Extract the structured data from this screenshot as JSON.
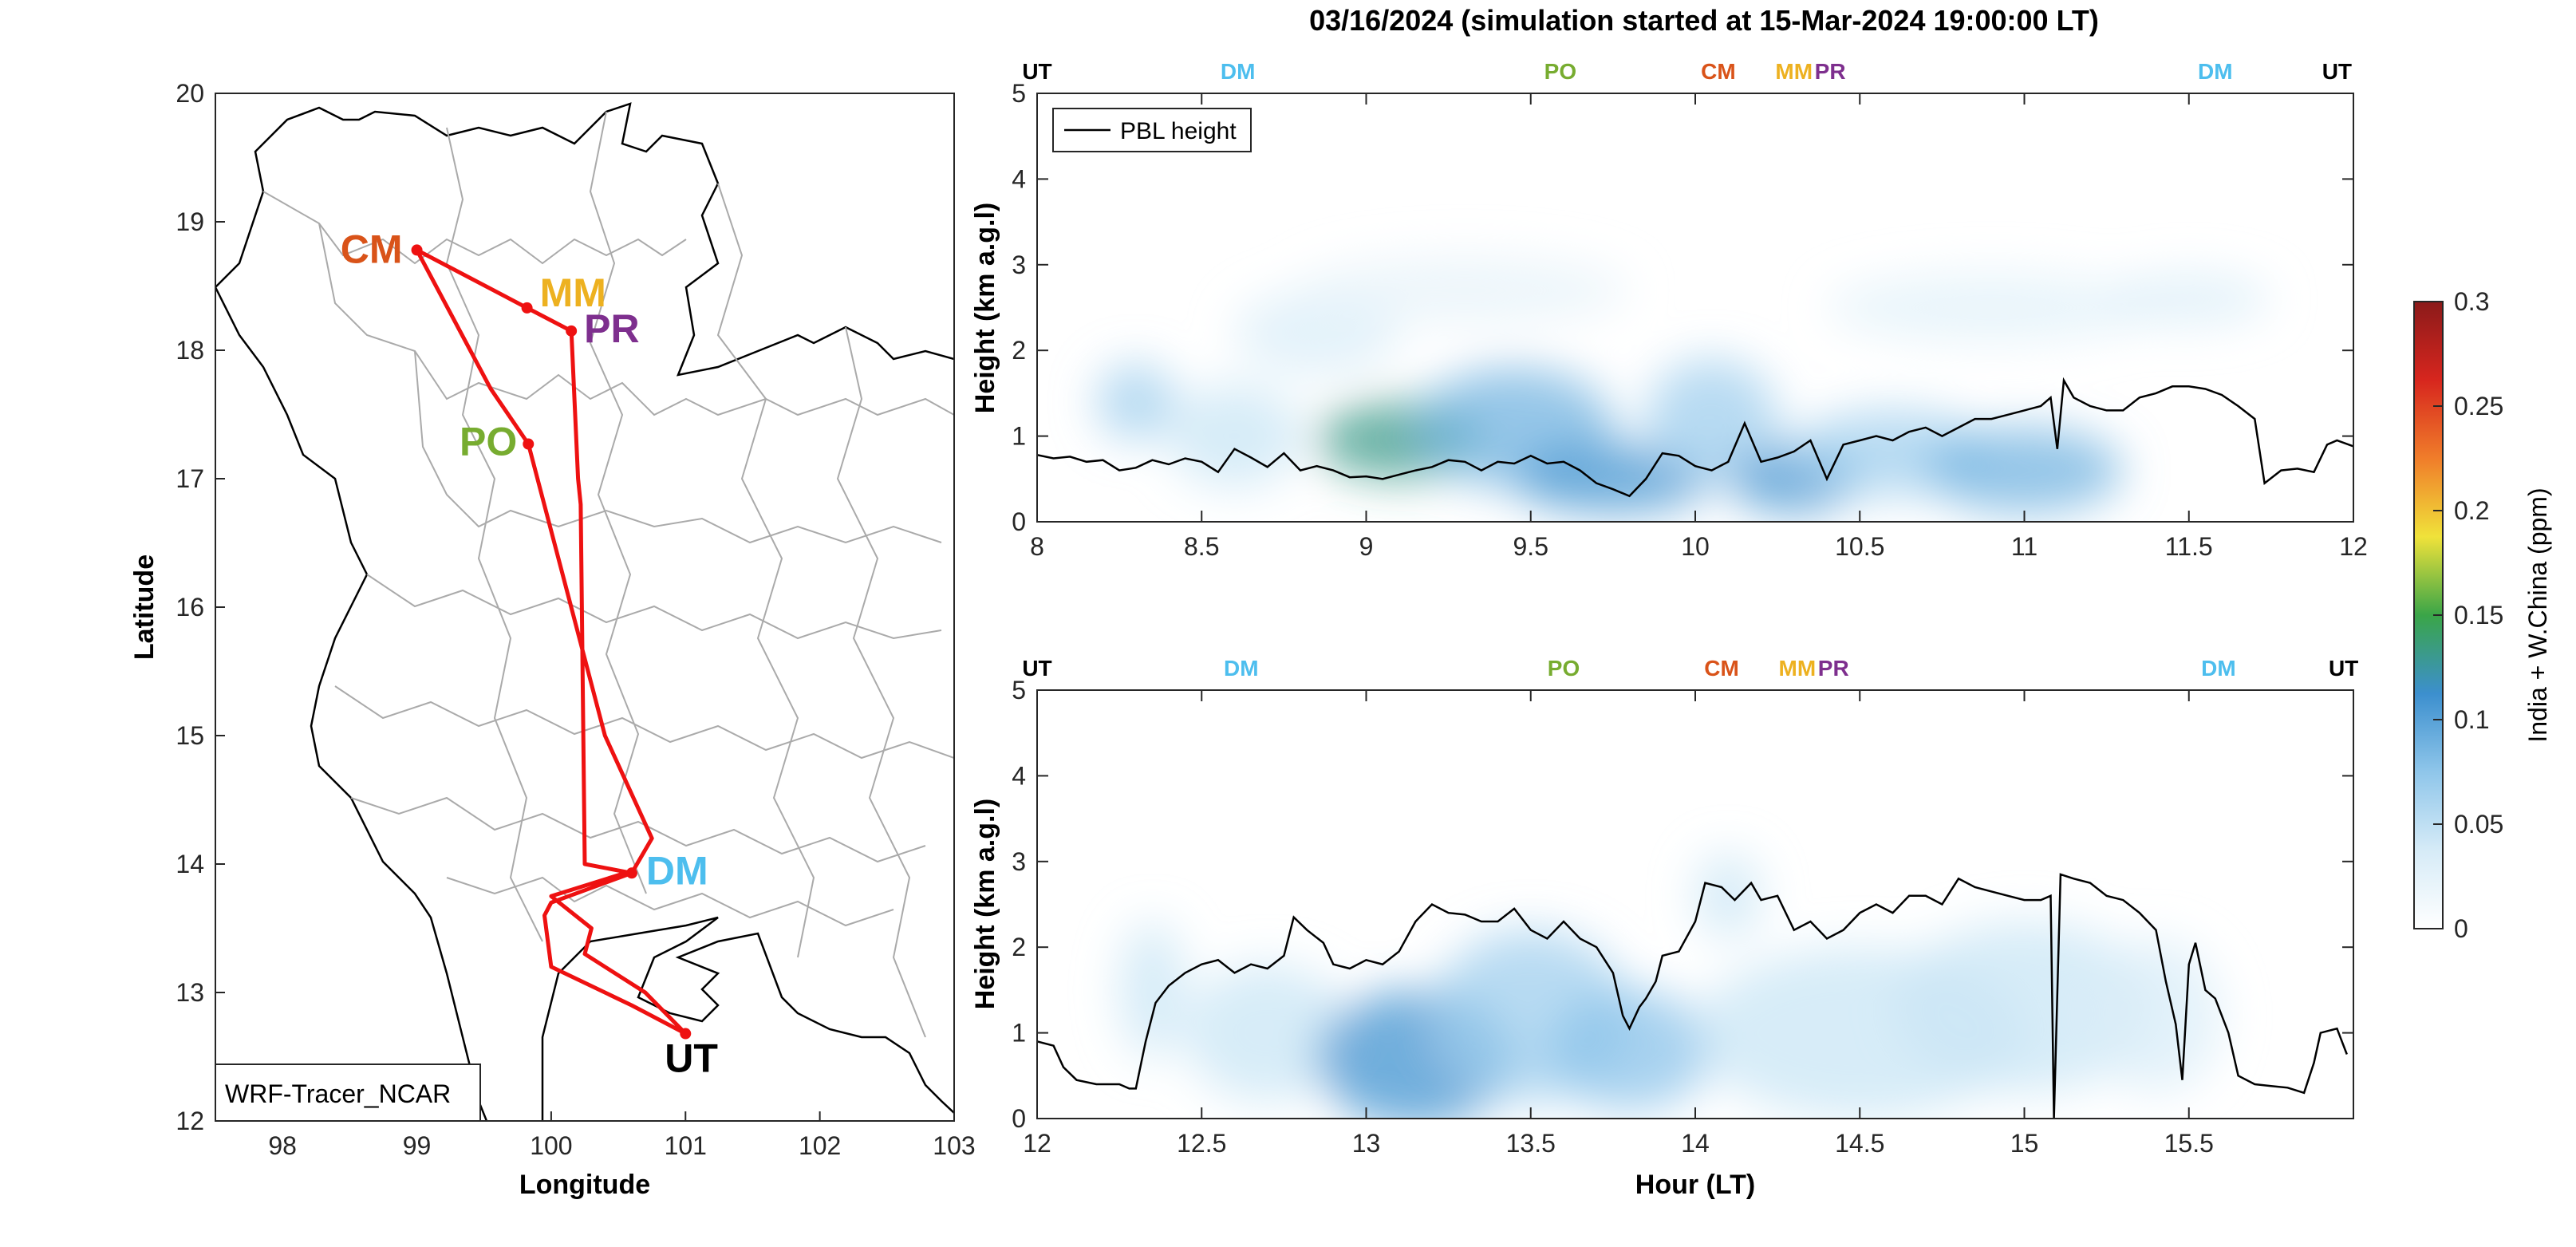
{
  "figure_title": "03/16/2024 (simulation started at 15-Mar-2024 19:00:00 LT)",
  "colors": {
    "UT": "#000000",
    "DM": "#4DBEEE",
    "PO": "#77AC30",
    "CM": "#D95319",
    "MM": "#EDB120",
    "PR": "#7E2F8E",
    "route": "#EE1111",
    "pbl": "#000000",
    "boundary": "#AAAAAA"
  },
  "colormap": [
    "#ffffff",
    "#d6ebf7",
    "#8fc6ea",
    "#3c8fce",
    "#3aa548",
    "#f0e23a",
    "#f07d2a",
    "#d7261e",
    "#8b1a1a"
  ],
  "chart_data": [
    {
      "type": "map",
      "xlabel": "Longitude",
      "ylabel": "Latitude",
      "xlim": [
        97.5,
        103
      ],
      "ylim": [
        12,
        20
      ],
      "xticks": [
        "98",
        "99",
        "100",
        "101",
        "102",
        "103"
      ],
      "yticks": [
        "12",
        "13",
        "14",
        "15",
        "16",
        "17",
        "18",
        "19",
        "20"
      ],
      "legend_label": "WRF-Tracer_NCAR",
      "stations": [
        {
          "code": "CM",
          "lon": 99.0,
          "lat": 18.78
        },
        {
          "code": "MM",
          "lon": 99.82,
          "lat": 18.33
        },
        {
          "code": "PR",
          "lon": 100.15,
          "lat": 18.15
        },
        {
          "code": "PO",
          "lon": 99.83,
          "lat": 17.27
        },
        {
          "code": "DM",
          "lon": 100.6,
          "lat": 13.93
        },
        {
          "code": "UT",
          "lon": 101.0,
          "lat": 12.68
        }
      ],
      "route": [
        [
          101.0,
          12.68
        ],
        [
          100.7,
          13.0
        ],
        [
          100.25,
          13.3
        ],
        [
          100.3,
          13.5
        ],
        [
          100.0,
          13.75
        ],
        [
          100.55,
          13.93
        ],
        [
          100.6,
          13.93
        ],
        [
          100.75,
          14.2
        ],
        [
          100.4,
          15.0
        ],
        [
          99.83,
          17.27
        ],
        [
          99.55,
          17.7
        ],
        [
          99.0,
          18.78
        ],
        [
          99.82,
          18.33
        ],
        [
          100.15,
          18.15
        ],
        [
          100.2,
          17.0
        ],
        [
          100.22,
          16.8
        ],
        [
          100.25,
          14.0
        ],
        [
          100.6,
          13.93
        ],
        [
          100.0,
          13.7
        ],
        [
          99.95,
          13.6
        ],
        [
          100.0,
          13.2
        ],
        [
          100.6,
          12.9
        ],
        [
          101.0,
          12.68
        ]
      ]
    },
    {
      "type": "heatmap",
      "panel": "top",
      "xlim": [
        8,
        12
      ],
      "ylim": [
        0,
        5
      ],
      "xticks": [
        "8",
        "8.5",
        "9",
        "9.5",
        "10",
        "10.5",
        "11",
        "11.5",
        "12"
      ],
      "yticks": [
        "0",
        "1",
        "2",
        "3",
        "4",
        "5"
      ],
      "ylabel": "Height (km a.g.l)",
      "legend": "PBL height",
      "station_labels": [
        {
          "code": "UT",
          "x": 8.0
        },
        {
          "code": "DM",
          "x": 8.61
        },
        {
          "code": "PO",
          "x": 9.59
        },
        {
          "code": "CM",
          "x": 10.07
        },
        {
          "code": "MM",
          "x": 10.3
        },
        {
          "code": "PR",
          "x": 10.41
        },
        {
          "code": "DM",
          "x": 11.58
        },
        {
          "code": "UT",
          "x": 11.95
        }
      ],
      "pbl_height": [
        [
          8.0,
          0.78
        ],
        [
          8.05,
          0.74
        ],
        [
          8.1,
          0.76
        ],
        [
          8.15,
          0.7
        ],
        [
          8.2,
          0.72
        ],
        [
          8.25,
          0.6
        ],
        [
          8.3,
          0.63
        ],
        [
          8.35,
          0.72
        ],
        [
          8.4,
          0.67
        ],
        [
          8.45,
          0.74
        ],
        [
          8.5,
          0.7
        ],
        [
          8.55,
          0.58
        ],
        [
          8.6,
          0.85
        ],
        [
          8.65,
          0.75
        ],
        [
          8.7,
          0.64
        ],
        [
          8.75,
          0.8
        ],
        [
          8.8,
          0.6
        ],
        [
          8.85,
          0.65
        ],
        [
          8.9,
          0.6
        ],
        [
          8.95,
          0.52
        ],
        [
          9.0,
          0.53
        ],
        [
          9.05,
          0.5
        ],
        [
          9.1,
          0.55
        ],
        [
          9.15,
          0.6
        ],
        [
          9.2,
          0.64
        ],
        [
          9.25,
          0.72
        ],
        [
          9.3,
          0.7
        ],
        [
          9.35,
          0.6
        ],
        [
          9.4,
          0.7
        ],
        [
          9.45,
          0.68
        ],
        [
          9.5,
          0.77
        ],
        [
          9.55,
          0.68
        ],
        [
          9.6,
          0.7
        ],
        [
          9.65,
          0.6
        ],
        [
          9.7,
          0.45
        ],
        [
          9.75,
          0.38
        ],
        [
          9.8,
          0.3
        ],
        [
          9.85,
          0.5
        ],
        [
          9.9,
          0.8
        ],
        [
          9.95,
          0.77
        ],
        [
          10.0,
          0.65
        ],
        [
          10.05,
          0.6
        ],
        [
          10.1,
          0.7
        ],
        [
          10.15,
          1.15
        ],
        [
          10.2,
          0.7
        ],
        [
          10.25,
          0.75
        ],
        [
          10.3,
          0.82
        ],
        [
          10.35,
          0.95
        ],
        [
          10.4,
          0.5
        ],
        [
          10.45,
          0.9
        ],
        [
          10.5,
          0.95
        ],
        [
          10.55,
          1.0
        ],
        [
          10.6,
          0.95
        ],
        [
          10.65,
          1.05
        ],
        [
          10.7,
          1.1
        ],
        [
          10.75,
          1.0
        ],
        [
          10.8,
          1.1
        ],
        [
          10.85,
          1.2
        ],
        [
          10.9,
          1.2
        ],
        [
          10.95,
          1.25
        ],
        [
          11.0,
          1.3
        ],
        [
          11.05,
          1.35
        ],
        [
          11.08,
          1.45
        ],
        [
          11.1,
          0.85
        ],
        [
          11.12,
          1.65
        ],
        [
          11.15,
          1.45
        ],
        [
          11.2,
          1.35
        ],
        [
          11.25,
          1.3
        ],
        [
          11.3,
          1.3
        ],
        [
          11.35,
          1.45
        ],
        [
          11.4,
          1.5
        ],
        [
          11.45,
          1.58
        ],
        [
          11.5,
          1.58
        ],
        [
          11.55,
          1.55
        ],
        [
          11.6,
          1.48
        ],
        [
          11.65,
          1.35
        ],
        [
          11.7,
          1.2
        ],
        [
          11.73,
          0.45
        ],
        [
          11.78,
          0.6
        ],
        [
          11.83,
          0.62
        ],
        [
          11.88,
          0.58
        ],
        [
          11.92,
          0.9
        ],
        [
          11.95,
          0.95
        ],
        [
          12.0,
          0.88
        ]
      ],
      "tracer_plumes": [
        {
          "x": 8.3,
          "y": 1.4,
          "rx": 0.12,
          "ry": 0.45,
          "value": 0.03
        },
        {
          "x": 8.6,
          "y": 1.0,
          "rx": 0.2,
          "ry": 0.6,
          "value": 0.02
        },
        {
          "x": 8.85,
          "y": 2.2,
          "rx": 0.25,
          "ry": 0.5,
          "value": 0.015
        },
        {
          "x": 9.1,
          "y": 0.95,
          "rx": 0.25,
          "ry": 0.45,
          "value": 0.06
        },
        {
          "x": 9.45,
          "y": 1.1,
          "rx": 0.3,
          "ry": 0.7,
          "value": 0.04
        },
        {
          "x": 9.75,
          "y": 0.5,
          "rx": 0.3,
          "ry": 0.4,
          "value": 0.05
        },
        {
          "x": 10.05,
          "y": 1.2,
          "rx": 0.2,
          "ry": 0.7,
          "value": 0.03
        },
        {
          "x": 10.3,
          "y": 0.5,
          "rx": 0.2,
          "ry": 0.4,
          "value": 0.05
        },
        {
          "x": 10.6,
          "y": 0.8,
          "rx": 0.3,
          "ry": 0.5,
          "value": 0.03
        },
        {
          "x": 11.0,
          "y": 0.6,
          "rx": 0.3,
          "ry": 0.5,
          "value": 0.04
        },
        {
          "x": 10.9,
          "y": 2.5,
          "rx": 0.5,
          "ry": 0.4,
          "value": 0.012
        },
        {
          "x": 11.5,
          "y": 2.6,
          "rx": 0.25,
          "ry": 0.3,
          "value": 0.015
        },
        {
          "x": 9.3,
          "y": 2.7,
          "rx": 0.5,
          "ry": 0.4,
          "value": 0.01
        }
      ]
    },
    {
      "type": "heatmap",
      "panel": "bottom",
      "xlim": [
        12,
        16
      ],
      "ylim": [
        0,
        5
      ],
      "xticks": [
        "12",
        "12.5",
        "13",
        "13.5",
        "14",
        "14.5",
        "15",
        "15.5"
      ],
      "yticks": [
        "0",
        "1",
        "2",
        "3",
        "4",
        "5"
      ],
      "xlabel": "Hour (LT)",
      "ylabel": "Height (km a.g.l)",
      "station_labels": [
        {
          "code": "UT",
          "x": 12.0
        },
        {
          "code": "DM",
          "x": 12.62
        },
        {
          "code": "PO",
          "x": 13.6
        },
        {
          "code": "CM",
          "x": 14.08
        },
        {
          "code": "MM",
          "x": 14.31
        },
        {
          "code": "PR",
          "x": 14.42
        },
        {
          "code": "DM",
          "x": 15.59
        },
        {
          "code": "UT",
          "x": 15.97
        }
      ],
      "pbl_height": [
        [
          12.0,
          0.9
        ],
        [
          12.05,
          0.85
        ],
        [
          12.08,
          0.6
        ],
        [
          12.12,
          0.45
        ],
        [
          12.18,
          0.4
        ],
        [
          12.25,
          0.4
        ],
        [
          12.28,
          0.35
        ],
        [
          12.3,
          0.35
        ],
        [
          12.33,
          0.9
        ],
        [
          12.36,
          1.35
        ],
        [
          12.4,
          1.55
        ],
        [
          12.45,
          1.7
        ],
        [
          12.5,
          1.8
        ],
        [
          12.55,
          1.85
        ],
        [
          12.6,
          1.7
        ],
        [
          12.65,
          1.8
        ],
        [
          12.7,
          1.75
        ],
        [
          12.75,
          1.9
        ],
        [
          12.78,
          2.35
        ],
        [
          12.82,
          2.2
        ],
        [
          12.87,
          2.05
        ],
        [
          12.9,
          1.8
        ],
        [
          12.95,
          1.75
        ],
        [
          13.0,
          1.85
        ],
        [
          13.05,
          1.8
        ],
        [
          13.1,
          1.95
        ],
        [
          13.15,
          2.3
        ],
        [
          13.2,
          2.5
        ],
        [
          13.25,
          2.4
        ],
        [
          13.3,
          2.38
        ],
        [
          13.35,
          2.3
        ],
        [
          13.4,
          2.3
        ],
        [
          13.45,
          2.45
        ],
        [
          13.5,
          2.2
        ],
        [
          13.55,
          2.1
        ],
        [
          13.6,
          2.3
        ],
        [
          13.65,
          2.1
        ],
        [
          13.7,
          2.0
        ],
        [
          13.75,
          1.7
        ],
        [
          13.78,
          1.2
        ],
        [
          13.8,
          1.05
        ],
        [
          13.83,
          1.3
        ],
        [
          13.85,
          1.4
        ],
        [
          13.88,
          1.6
        ],
        [
          13.9,
          1.9
        ],
        [
          13.95,
          1.95
        ],
        [
          14.0,
          2.3
        ],
        [
          14.03,
          2.75
        ],
        [
          14.08,
          2.7
        ],
        [
          14.12,
          2.55
        ],
        [
          14.17,
          2.75
        ],
        [
          14.2,
          2.55
        ],
        [
          14.25,
          2.6
        ],
        [
          14.3,
          2.2
        ],
        [
          14.35,
          2.3
        ],
        [
          14.4,
          2.1
        ],
        [
          14.45,
          2.2
        ],
        [
          14.5,
          2.4
        ],
        [
          14.55,
          2.5
        ],
        [
          14.6,
          2.4
        ],
        [
          14.65,
          2.6
        ],
        [
          14.7,
          2.6
        ],
        [
          14.75,
          2.5
        ],
        [
          14.8,
          2.8
        ],
        [
          14.85,
          2.7
        ],
        [
          14.9,
          2.65
        ],
        [
          14.95,
          2.6
        ],
        [
          15.0,
          2.55
        ],
        [
          15.05,
          2.55
        ],
        [
          15.08,
          2.6
        ],
        [
          15.09,
          0.0
        ],
        [
          15.11,
          2.85
        ],
        [
          15.15,
          2.8
        ],
        [
          15.2,
          2.75
        ],
        [
          15.25,
          2.6
        ],
        [
          15.3,
          2.55
        ],
        [
          15.35,
          2.4
        ],
        [
          15.4,
          2.2
        ],
        [
          15.43,
          1.6
        ],
        [
          15.46,
          1.1
        ],
        [
          15.48,
          0.45
        ],
        [
          15.5,
          1.8
        ],
        [
          15.52,
          2.05
        ],
        [
          15.55,
          1.5
        ],
        [
          15.58,
          1.4
        ],
        [
          15.62,
          1.0
        ],
        [
          15.65,
          0.5
        ],
        [
          15.7,
          0.4
        ],
        [
          15.75,
          0.38
        ],
        [
          15.8,
          0.36
        ],
        [
          15.85,
          0.3
        ],
        [
          15.88,
          0.65
        ],
        [
          15.9,
          1.0
        ],
        [
          15.95,
          1.05
        ],
        [
          15.98,
          0.75
        ]
      ],
      "tracer_plumes": [
        {
          "x": 12.35,
          "y": 1.5,
          "rx": 0.1,
          "ry": 0.8,
          "value": 0.02
        },
        {
          "x": 12.7,
          "y": 1.0,
          "rx": 0.25,
          "ry": 0.8,
          "value": 0.02
        },
        {
          "x": 13.15,
          "y": 0.7,
          "rx": 0.3,
          "ry": 0.8,
          "value": 0.05
        },
        {
          "x": 13.5,
          "y": 1.2,
          "rx": 0.3,
          "ry": 1.0,
          "value": 0.03
        },
        {
          "x": 13.8,
          "y": 0.8,
          "rx": 0.25,
          "ry": 0.7,
          "value": 0.035
        },
        {
          "x": 14.1,
          "y": 2.6,
          "rx": 0.1,
          "ry": 0.5,
          "value": 0.02
        },
        {
          "x": 14.5,
          "y": 1.0,
          "rx": 0.5,
          "ry": 1.0,
          "value": 0.02
        },
        {
          "x": 15.0,
          "y": 1.3,
          "rx": 0.4,
          "ry": 1.0,
          "value": 0.02
        },
        {
          "x": 15.4,
          "y": 1.2,
          "rx": 0.2,
          "ry": 0.9,
          "value": 0.015
        }
      ]
    },
    {
      "type": "colorbar",
      "label": "India + W.China (ppm)",
      "range": [
        0,
        0.3
      ],
      "ticks": [
        "0",
        "0.05",
        "0.1",
        "0.15",
        "0.2",
        "0.25",
        "0.3"
      ]
    }
  ]
}
